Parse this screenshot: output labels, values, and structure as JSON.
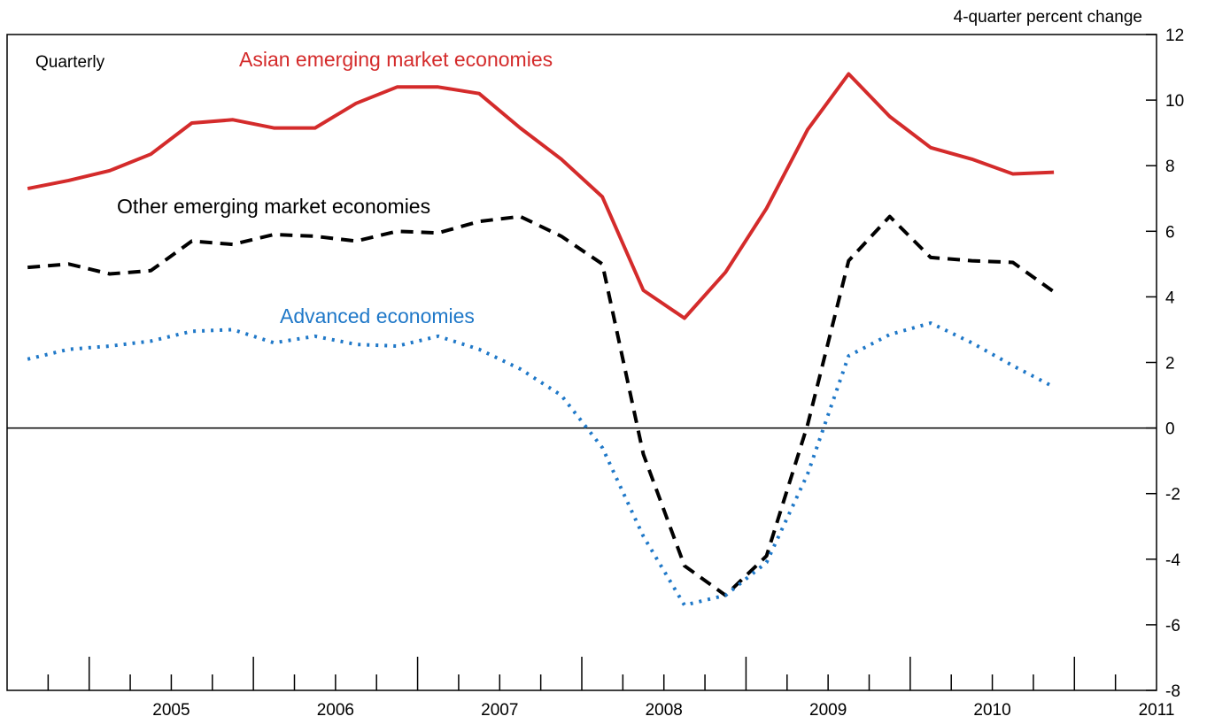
{
  "chart_data": {
    "type": "line",
    "unit_label": "4-quarter percent change",
    "frequency_label": "Quarterly",
    "ylim": [
      -8,
      12
    ],
    "y_ticks": [
      12,
      10,
      8,
      6,
      4,
      2,
      0,
      -2,
      -4,
      -6,
      -8
    ],
    "x_range": [
      2004.5,
      2011.5
    ],
    "x_ticks": [
      "2005",
      "2006",
      "2007",
      "2008",
      "2009",
      "2010",
      "2011"
    ],
    "zero_line": true,
    "x": [
      2004.625,
      2004.875,
      2005.125,
      2005.375,
      2005.625,
      2005.875,
      2006.125,
      2006.375,
      2006.625,
      2006.875,
      2007.125,
      2007.375,
      2007.625,
      2007.875,
      2008.125,
      2008.375,
      2008.625,
      2008.875,
      2009.125,
      2009.375,
      2009.625,
      2009.875,
      2010.125,
      2010.375,
      2010.625,
      2010.875
    ],
    "series": [
      {
        "name": "Asian emerging market economies",
        "color": "#d42b2b",
        "dash": "solid",
        "values": [
          7.3,
          7.55,
          7.85,
          8.35,
          9.3,
          9.4,
          9.15,
          9.15,
          9.9,
          10.4,
          10.4,
          10.2,
          9.15,
          8.2,
          7.05,
          4.2,
          3.35,
          4.75,
          6.7,
          9.1,
          10.8,
          9.5,
          8.55,
          8.2,
          7.75,
          7.8
        ]
      },
      {
        "name": "Other emerging market economies",
        "color": "#000000",
        "dash": "dashed",
        "values": [
          4.9,
          5.0,
          4.7,
          4.8,
          5.7,
          5.6,
          5.9,
          5.85,
          5.7,
          6.0,
          5.95,
          6.3,
          6.45,
          5.85,
          5.0,
          -0.8,
          -4.2,
          -5.1,
          -3.9,
          0.1,
          5.1,
          6.45,
          5.2,
          5.1,
          5.05,
          4.15
        ]
      },
      {
        "name": "Advanced economies",
        "color": "#1f78c8",
        "dash": "dotted",
        "values": [
          2.1,
          2.4,
          2.5,
          2.65,
          2.95,
          3.0,
          2.6,
          2.8,
          2.55,
          2.5,
          2.8,
          2.4,
          1.8,
          1.0,
          -0.6,
          -3.3,
          -5.4,
          -5.1,
          -4.1,
          -1.4,
          2.2,
          2.85,
          3.2,
          2.6,
          1.9,
          1.25
        ]
      }
    ]
  }
}
